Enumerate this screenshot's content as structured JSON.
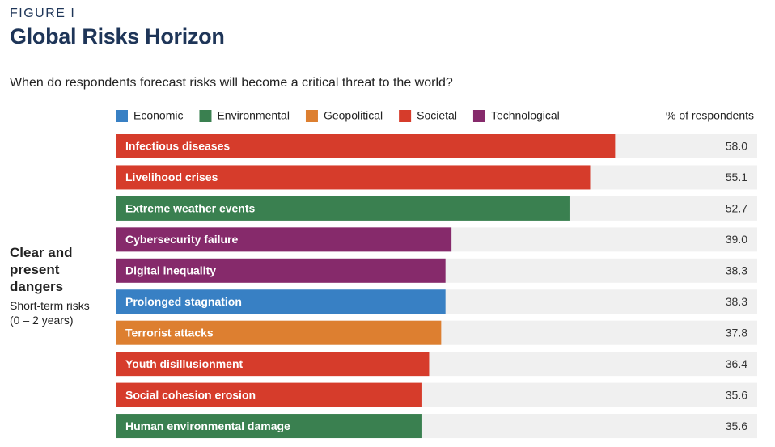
{
  "figure_label": "FIGURE I",
  "chart_data": {
    "type": "bar",
    "title": "Global Risks Horizon",
    "subtitle": "When do respondents forecast risks will become a critical threat to the world?",
    "value_axis_label": "% of respondents",
    "group_label": "Clear and present dangers",
    "group_sublabel": "Short-term risks (0 – 2 years)",
    "series": [
      {
        "name": "Economic",
        "color": "#3880c4"
      },
      {
        "name": "Environmental",
        "color": "#3a8050"
      },
      {
        "name": "Geopolitical",
        "color": "#dd7f30"
      },
      {
        "name": "Societal",
        "color": "#d63c2b"
      },
      {
        "name": "Technological",
        "color": "#862a6b"
      }
    ],
    "categories": [
      "Infectious diseases",
      "Livelihood crises",
      "Extreme weather events",
      "Cybersecurity failure",
      "Digital inequality",
      "Prolonged stagnation",
      "Terrorist attacks",
      "Youth disillusionment",
      "Social cohesion erosion",
      "Human environmental damage"
    ],
    "values": [
      58.0,
      55.1,
      52.7,
      39.0,
      38.3,
      38.3,
      37.8,
      36.4,
      35.6,
      35.6
    ],
    "value_labels": [
      "58.0",
      "55.1",
      "52.7",
      "39.0",
      "38.3",
      "38.3",
      "37.8",
      "36.4",
      "35.6",
      "35.6"
    ],
    "colors": [
      "#d63c2b",
      "#d63c2b",
      "#3a8050",
      "#862a6b",
      "#862a6b",
      "#3880c4",
      "#dd7f30",
      "#d63c2b",
      "#d63c2b",
      "#3a8050"
    ],
    "xlim": [
      0,
      74.5
    ],
    "track_color": "#f0f0f0"
  }
}
